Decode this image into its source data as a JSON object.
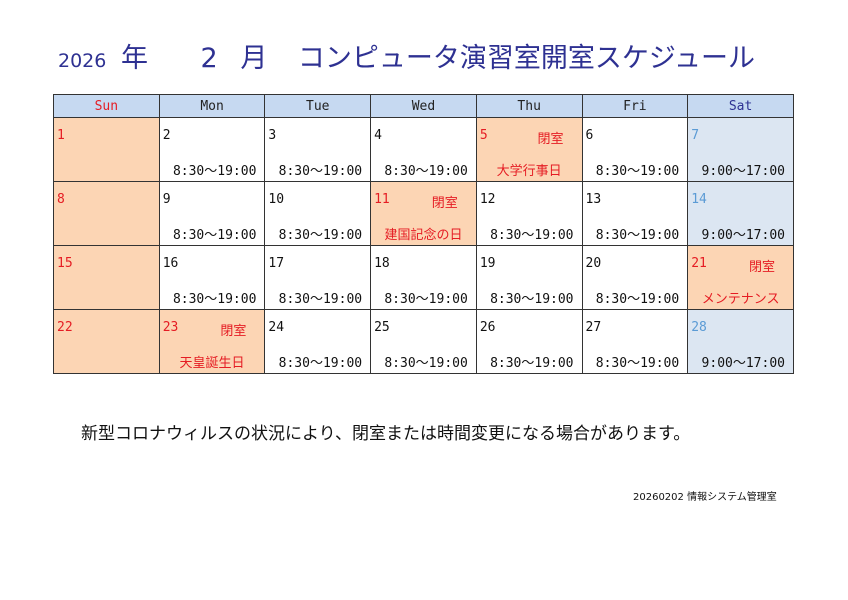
{
  "title": {
    "year": "2026",
    "year_unit": "年",
    "month": "2",
    "month_unit": "月",
    "name": "コンピュータ演習室開室スケジュール"
  },
  "colors": {
    "title": "#2e3192",
    "header_bg": "#c6d9f1",
    "closed_bg": "#fcd5b4",
    "saturday_bg": "#dce6f2",
    "red": "#e51c23",
    "saturday_date": "#5b9bd5"
  },
  "weekdays": [
    "Sun",
    "Mon",
    "Tue",
    "Wed",
    "Thu",
    "Fri",
    "Sat"
  ],
  "weeks": [
    [
      {
        "d": "1",
        "t": "sun"
      },
      {
        "d": "2",
        "h": "8:30～19:00"
      },
      {
        "d": "3",
        "h": "8:30～19:00"
      },
      {
        "d": "4",
        "h": "8:30～19:00"
      },
      {
        "d": "5",
        "t": "closed",
        "c": "閉室",
        "r": "大学行事日"
      },
      {
        "d": "6",
        "h": "8:30～19:00"
      },
      {
        "d": "7",
        "t": "sat",
        "h": "9:00～17:00"
      }
    ],
    [
      {
        "d": "8",
        "t": "sun"
      },
      {
        "d": "9",
        "h": "8:30～19:00"
      },
      {
        "d": "10",
        "h": "8:30～19:00"
      },
      {
        "d": "11",
        "t": "closed",
        "c": "閉室",
        "r": "建国記念の日"
      },
      {
        "d": "12",
        "h": "8:30～19:00"
      },
      {
        "d": "13",
        "h": "8:30～19:00"
      },
      {
        "d": "14",
        "t": "sat",
        "h": "9:00～17:00"
      }
    ],
    [
      {
        "d": "15",
        "t": "sun"
      },
      {
        "d": "16",
        "h": "8:30～19:00"
      },
      {
        "d": "17",
        "h": "8:30～19:00"
      },
      {
        "d": "18",
        "h": "8:30～19:00"
      },
      {
        "d": "19",
        "h": "8:30～19:00"
      },
      {
        "d": "20",
        "h": "8:30～19:00"
      },
      {
        "d": "21",
        "t": "closed",
        "c": "閉室",
        "r": "メンテナンス"
      }
    ],
    [
      {
        "d": "22",
        "t": "sun"
      },
      {
        "d": "23",
        "t": "closed",
        "c": "閉室",
        "r": "天皇誕生日"
      },
      {
        "d": "24",
        "h": "8:30～19:00"
      },
      {
        "d": "25",
        "h": "8:30～19:00"
      },
      {
        "d": "26",
        "h": "8:30～19:00"
      },
      {
        "d": "27",
        "h": "8:30～19:00"
      },
      {
        "d": "28",
        "t": "sat",
        "h": "9:00～17:00"
      }
    ]
  ],
  "note": "新型コロナウィルスの状況により、閉室または時間変更になる場合があります。",
  "footer": "20260202 情報システム管理室"
}
